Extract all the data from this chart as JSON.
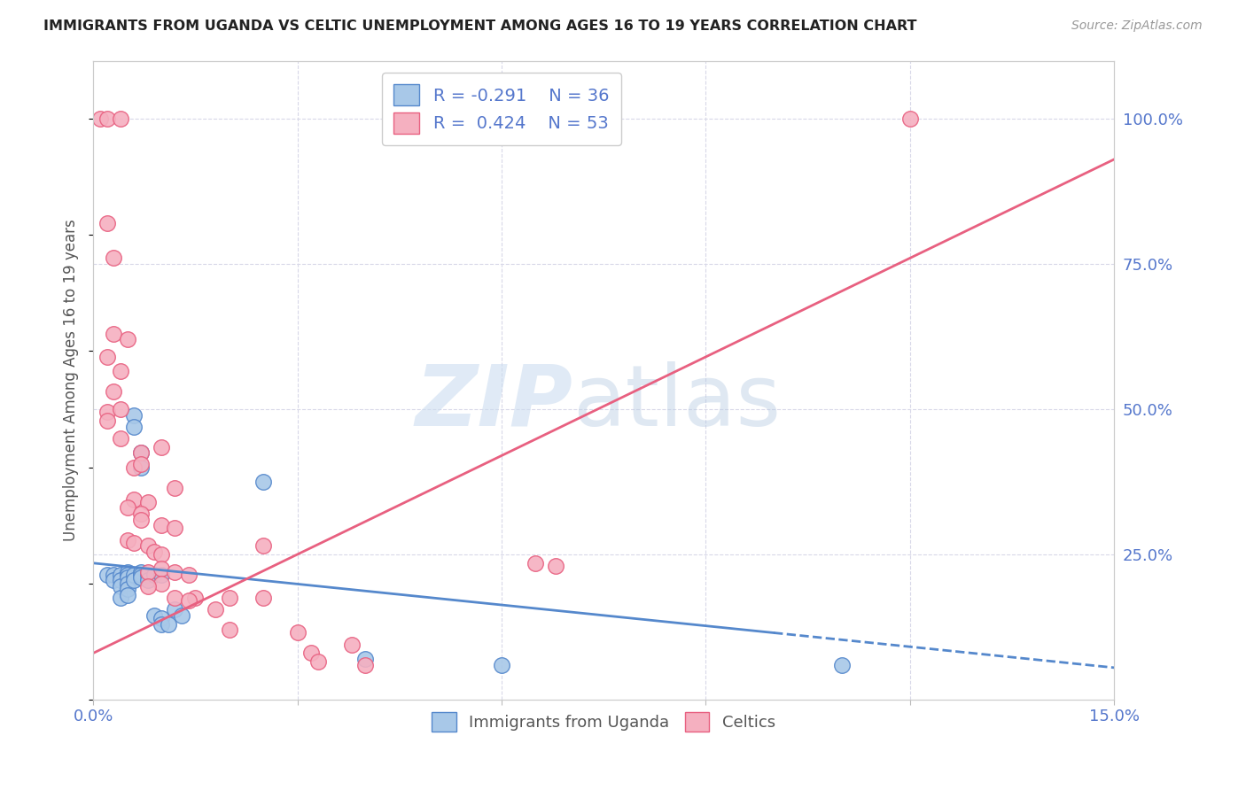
{
  "title": "IMMIGRANTS FROM UGANDA VS CELTIC UNEMPLOYMENT AMONG AGES 16 TO 19 YEARS CORRELATION CHART",
  "source": "Source: ZipAtlas.com",
  "ylabel": "Unemployment Among Ages 16 to 19 years",
  "xlim": [
    0.0,
    0.15
  ],
  "ylim": [
    0.0,
    1.1
  ],
  "xticks": [
    0.0,
    0.03,
    0.06,
    0.09,
    0.12,
    0.15
  ],
  "xticklabels": [
    "0.0%",
    "",
    "",
    "",
    "",
    "15.0%"
  ],
  "yticks_right": [
    0.25,
    0.5,
    0.75,
    1.0
  ],
  "ytick_labels_right": [
    "25.0%",
    "50.0%",
    "75.0%",
    "100.0%"
  ],
  "legend_r1": "R = -0.291",
  "legend_n1": "N = 36",
  "legend_r2": "R =  0.424",
  "legend_n2": "N = 53",
  "color_uganda": "#a8c8e8",
  "color_celtic": "#f5b0c0",
  "color_uganda_line": "#5588cc",
  "color_celtic_line": "#e86080",
  "color_axis_labels": "#5577cc",
  "background_color": "#ffffff",
  "grid_color": "#d8d8e8",
  "uganda_line_x": [
    0.0,
    0.15
  ],
  "uganda_line_y": [
    0.235,
    0.055
  ],
  "uganda_line_solid_end": 0.1,
  "celtic_line_x": [
    0.0,
    0.15
  ],
  "celtic_line_y": [
    0.08,
    0.93
  ],
  "scatter_uganda": [
    [
      0.002,
      0.215
    ],
    [
      0.003,
      0.215
    ],
    [
      0.003,
      0.205
    ],
    [
      0.004,
      0.215
    ],
    [
      0.004,
      0.205
    ],
    [
      0.004,
      0.195
    ],
    [
      0.004,
      0.175
    ],
    [
      0.005,
      0.22
    ],
    [
      0.005,
      0.215
    ],
    [
      0.005,
      0.21
    ],
    [
      0.005,
      0.2
    ],
    [
      0.005,
      0.19
    ],
    [
      0.005,
      0.18
    ],
    [
      0.006,
      0.49
    ],
    [
      0.006,
      0.47
    ],
    [
      0.006,
      0.215
    ],
    [
      0.006,
      0.205
    ],
    [
      0.007,
      0.425
    ],
    [
      0.007,
      0.4
    ],
    [
      0.007,
      0.22
    ],
    [
      0.007,
      0.215
    ],
    [
      0.007,
      0.21
    ],
    [
      0.008,
      0.215
    ],
    [
      0.008,
      0.205
    ],
    [
      0.009,
      0.215
    ],
    [
      0.009,
      0.145
    ],
    [
      0.01,
      0.215
    ],
    [
      0.01,
      0.14
    ],
    [
      0.01,
      0.13
    ],
    [
      0.011,
      0.13
    ],
    [
      0.012,
      0.155
    ],
    [
      0.013,
      0.145
    ],
    [
      0.025,
      0.375
    ],
    [
      0.04,
      0.07
    ],
    [
      0.06,
      0.06
    ],
    [
      0.11,
      0.06
    ]
  ],
  "scatter_celtic": [
    [
      0.001,
      1.0
    ],
    [
      0.002,
      1.0
    ],
    [
      0.004,
      1.0
    ],
    [
      0.12,
      1.0
    ],
    [
      0.002,
      0.82
    ],
    [
      0.003,
      0.76
    ],
    [
      0.003,
      0.63
    ],
    [
      0.005,
      0.62
    ],
    [
      0.002,
      0.59
    ],
    [
      0.004,
      0.565
    ],
    [
      0.003,
      0.53
    ],
    [
      0.002,
      0.495
    ],
    [
      0.004,
      0.5
    ],
    [
      0.002,
      0.48
    ],
    [
      0.004,
      0.45
    ],
    [
      0.007,
      0.425
    ],
    [
      0.01,
      0.435
    ],
    [
      0.006,
      0.4
    ],
    [
      0.007,
      0.405
    ],
    [
      0.012,
      0.365
    ],
    [
      0.006,
      0.345
    ],
    [
      0.008,
      0.34
    ],
    [
      0.005,
      0.33
    ],
    [
      0.007,
      0.32
    ],
    [
      0.007,
      0.31
    ],
    [
      0.01,
      0.3
    ],
    [
      0.005,
      0.275
    ],
    [
      0.006,
      0.27
    ],
    [
      0.008,
      0.265
    ],
    [
      0.009,
      0.255
    ],
    [
      0.01,
      0.25
    ],
    [
      0.012,
      0.295
    ],
    [
      0.008,
      0.22
    ],
    [
      0.01,
      0.225
    ],
    [
      0.012,
      0.22
    ],
    [
      0.014,
      0.215
    ],
    [
      0.01,
      0.2
    ],
    [
      0.008,
      0.195
    ],
    [
      0.012,
      0.175
    ],
    [
      0.015,
      0.175
    ],
    [
      0.02,
      0.175
    ],
    [
      0.018,
      0.155
    ],
    [
      0.02,
      0.12
    ],
    [
      0.03,
      0.115
    ],
    [
      0.032,
      0.08
    ],
    [
      0.033,
      0.065
    ],
    [
      0.014,
      0.17
    ],
    [
      0.065,
      0.235
    ],
    [
      0.068,
      0.23
    ],
    [
      0.025,
      0.265
    ],
    [
      0.025,
      0.175
    ],
    [
      0.038,
      0.095
    ],
    [
      0.04,
      0.06
    ]
  ]
}
